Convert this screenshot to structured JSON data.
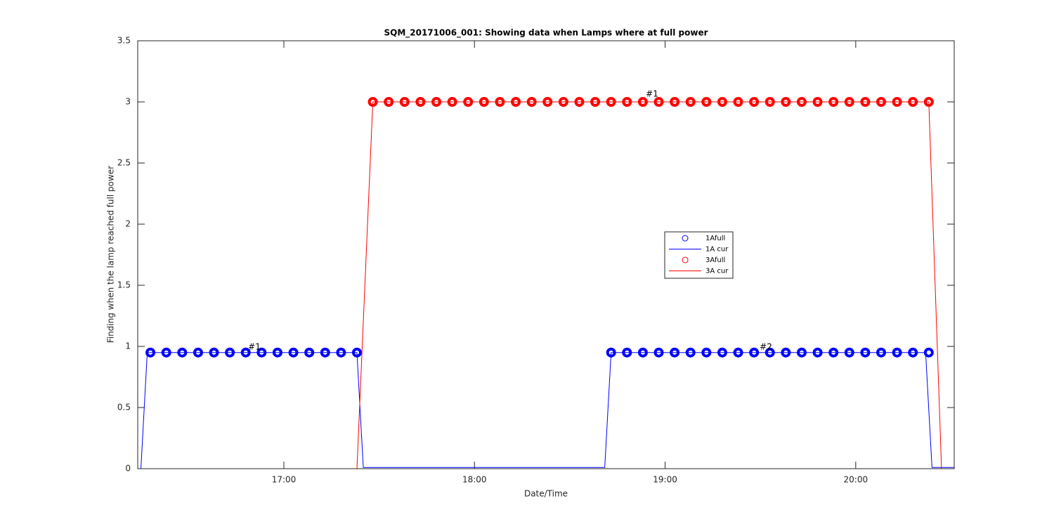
{
  "chart_data": {
    "type": "line",
    "title": "SQM_20171006_001: Showing data when Lamps where at full power",
    "x_label": "Date/Time",
    "y_label": "Finding when the lamp reached full power",
    "xlim": [
      "16:14",
      "20:31"
    ],
    "xticks": [
      "17:00",
      "18:00",
      "19:00",
      "20:00"
    ],
    "ylim": [
      0,
      3.5
    ],
    "yticks": [
      0,
      0.5,
      1,
      1.5,
      2,
      2.5,
      3,
      3.5
    ],
    "grid": false,
    "legend": "center",
    "series": [
      {
        "name": "1Afull",
        "style": "markers",
        "color": "#0000ff",
        "x": [
          "16:18",
          "16:23",
          "16:28",
          "16:33",
          "16:38",
          "16:43",
          "16:48",
          "16:53",
          "16:58",
          "17:03",
          "17:08",
          "17:13",
          "17:18",
          "17:23",
          "18:43",
          "18:48",
          "18:53",
          "18:58",
          "19:03",
          "19:08",
          "19:13",
          "19:18",
          "19:23",
          "19:28",
          "19:33",
          "19:38",
          "19:43",
          "19:48",
          "19:53",
          "19:58",
          "20:03",
          "20:08",
          "20:13",
          "20:18",
          "20:23"
        ],
        "values": [
          0.95,
          0.95,
          0.95,
          0.95,
          0.95,
          0.95,
          0.95,
          0.95,
          0.95,
          0.95,
          0.95,
          0.95,
          0.95,
          0.95,
          0.95,
          0.95,
          0.95,
          0.95,
          0.95,
          0.95,
          0.95,
          0.95,
          0.95,
          0.95,
          0.95,
          0.95,
          0.95,
          0.95,
          0.95,
          0.95,
          0.95,
          0.95,
          0.95,
          0.95,
          0.95
        ]
      },
      {
        "name": "1A cur",
        "style": "line",
        "color": "#0000ff",
        "x": [
          "16:14",
          "16:15",
          "16:17",
          "17:23",
          "17:25",
          "18:41",
          "18:43",
          "20:22",
          "20:24",
          "20:31"
        ],
        "values": [
          0,
          0,
          0.95,
          0.95,
          0.01,
          0.01,
          0.95,
          0.95,
          0.01,
          0.01
        ]
      },
      {
        "name": "3Afull",
        "style": "markers",
        "color": "#ff0000",
        "x": [
          "17:28",
          "17:33",
          "17:38",
          "17:43",
          "17:48",
          "17:53",
          "17:58",
          "18:03",
          "18:08",
          "18:13",
          "18:18",
          "18:23",
          "18:28",
          "18:33",
          "18:38",
          "18:43",
          "18:48",
          "18:53",
          "18:58",
          "19:03",
          "19:08",
          "19:13",
          "19:18",
          "19:23",
          "19:28",
          "19:33",
          "19:38",
          "19:43",
          "19:48",
          "19:53",
          "19:58",
          "20:03",
          "20:08",
          "20:13",
          "20:18",
          "20:23"
        ],
        "values": [
          3,
          3,
          3,
          3,
          3,
          3,
          3,
          3,
          3,
          3,
          3,
          3,
          3,
          3,
          3,
          3,
          3,
          3,
          3,
          3,
          3,
          3,
          3,
          3,
          3,
          3,
          3,
          3,
          3,
          3,
          3,
          3,
          3,
          3,
          3,
          3
        ]
      },
      {
        "name": "3A cur",
        "style": "line",
        "color": "#ff0000",
        "x": [
          "16:14",
          "17:23",
          "17:28",
          "20:23",
          "20:27",
          "20:31"
        ],
        "values": [
          0,
          0,
          3,
          3,
          0,
          0
        ]
      }
    ],
    "annotations": [
      "#1",
      "#1",
      "#2"
    ]
  }
}
